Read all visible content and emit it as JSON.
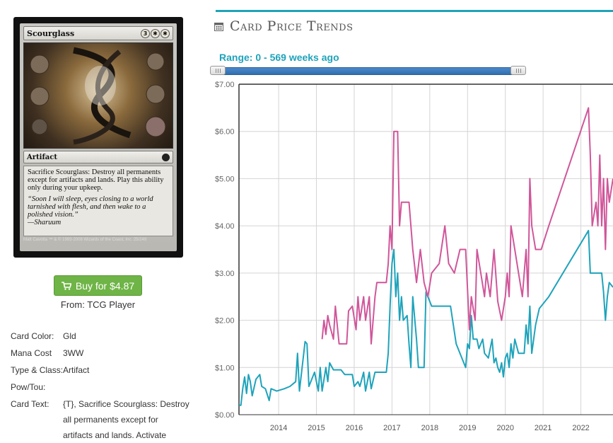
{
  "card": {
    "name": "Scourglass",
    "mana": [
      "3",
      "✱",
      "✱"
    ],
    "type_line": "Artifact",
    "rules_text": "Sacrifice Scourglass: Destroy all permanents except for artifacts and lands. Play this ability only during your upkeep.",
    "flavor_text": "“Soon I will sleep, eyes closing to a world tarnished with flesh, and then wake to a polished vision.”\n—Sharuum",
    "artist": "Matt Cavotta",
    "footer": "™ & © 1993-2008 Wizards of the Coast, Inc. 25/249"
  },
  "buy": {
    "label": "Buy for $4.87",
    "from": "From: TCG Player"
  },
  "info": {
    "color_label": "Card Color:",
    "color_value": "Gld",
    "mana_label": "Mana Cost",
    "mana_value": "3WW",
    "type_label": "Type & Class:",
    "type_value": "Artifact",
    "pt_label": "Pow/Tou:",
    "pt_value": "",
    "text_label": "Card Text:",
    "text_value": "{T}, Sacrifice Scourglass: Destroy all permanents except for artifacts and lands. Activate"
  },
  "section": {
    "title": "Card Price Trends"
  },
  "range": {
    "label": "Range: 0 - 569 weeks ago"
  },
  "colors": {
    "accent": "#1ea3bb",
    "pink": "#d0569a",
    "teal": "#1ea3bb",
    "buy": "#6fb447"
  },
  "chart_data": {
    "type": "line",
    "title": "",
    "xlabel": "",
    "ylabel": "",
    "xlim": [
      2013.0,
      2022.9
    ],
    "ylim": [
      0,
      7
    ],
    "y_ticks": [
      "$0.00",
      "$1.00",
      "$2.00",
      "$3.00",
      "$4.00",
      "$5.00",
      "$6.00",
      "$7.00"
    ],
    "x_ticks": [
      "2014",
      "2015",
      "2016",
      "2017",
      "2018",
      "2019",
      "2020",
      "2021",
      "2022"
    ],
    "grid": true,
    "series": [
      {
        "color": "#1ea3bb",
        "points": [
          [
            2013.0,
            0.2
          ],
          [
            2013.05,
            0.2
          ],
          [
            2013.1,
            0.55
          ],
          [
            2013.15,
            0.8
          ],
          [
            2013.2,
            0.45
          ],
          [
            2013.25,
            0.85
          ],
          [
            2013.3,
            0.7
          ],
          [
            2013.35,
            0.4
          ],
          [
            2013.45,
            0.75
          ],
          [
            2013.55,
            0.85
          ],
          [
            2013.6,
            0.6
          ],
          [
            2013.7,
            0.55
          ],
          [
            2013.8,
            0.3
          ],
          [
            2013.85,
            0.55
          ],
          [
            2014.0,
            0.5
          ],
          [
            2014.2,
            0.55
          ],
          [
            2014.35,
            0.6
          ],
          [
            2014.5,
            0.7
          ],
          [
            2014.55,
            1.3
          ],
          [
            2014.6,
            0.5
          ],
          [
            2014.75,
            1.55
          ],
          [
            2014.8,
            1.5
          ],
          [
            2014.85,
            0.6
          ],
          [
            2015.0,
            0.9
          ],
          [
            2015.1,
            0.5
          ],
          [
            2015.15,
            1.0
          ],
          [
            2015.2,
            0.5
          ],
          [
            2015.3,
            1.0
          ],
          [
            2015.35,
            0.7
          ],
          [
            2015.4,
            1.1
          ],
          [
            2015.5,
            0.95
          ],
          [
            2015.7,
            0.95
          ],
          [
            2015.8,
            0.85
          ],
          [
            2016.0,
            0.85
          ],
          [
            2016.05,
            0.6
          ],
          [
            2016.15,
            0.7
          ],
          [
            2016.2,
            0.6
          ],
          [
            2016.3,
            0.9
          ],
          [
            2016.35,
            0.5
          ],
          [
            2016.45,
            0.9
          ],
          [
            2016.5,
            0.55
          ],
          [
            2016.6,
            0.9
          ],
          [
            2016.9,
            0.9
          ],
          [
            2016.95,
            1.3
          ],
          [
            2017.0,
            2.3
          ],
          [
            2017.05,
            3.2
          ],
          [
            2017.1,
            3.5
          ],
          [
            2017.15,
            2.5
          ],
          [
            2017.2,
            3.0
          ],
          [
            2017.25,
            2.0
          ],
          [
            2017.3,
            2.5
          ],
          [
            2017.35,
            2.0
          ],
          [
            2017.45,
            2.1
          ],
          [
            2017.5,
            1.5
          ],
          [
            2017.55,
            1.0
          ],
          [
            2017.6,
            2.5
          ],
          [
            2017.7,
            1.6
          ],
          [
            2017.75,
            1.0
          ],
          [
            2017.9,
            1.0
          ],
          [
            2017.95,
            2.6
          ],
          [
            2018.1,
            2.3
          ],
          [
            2018.6,
            2.3
          ],
          [
            2018.75,
            1.5
          ],
          [
            2019.0,
            1.0
          ],
          [
            2019.05,
            1.5
          ],
          [
            2019.1,
            1.4
          ],
          [
            2019.15,
            2.1
          ],
          [
            2019.2,
            1.6
          ],
          [
            2019.3,
            1.6
          ],
          [
            2019.35,
            1.4
          ],
          [
            2019.45,
            1.6
          ],
          [
            2019.5,
            1.3
          ],
          [
            2019.6,
            1.2
          ],
          [
            2019.7,
            1.6
          ],
          [
            2019.75,
            1.1
          ],
          [
            2019.8,
            1.2
          ],
          [
            2019.85,
            1.0
          ],
          [
            2019.9,
            0.9
          ],
          [
            2019.95,
            1.1
          ],
          [
            2020.0,
            0.8
          ],
          [
            2020.05,
            1.2
          ],
          [
            2020.1,
            1.3
          ],
          [
            2020.15,
            1.0
          ],
          [
            2020.2,
            1.5
          ],
          [
            2020.25,
            1.2
          ],
          [
            2020.3,
            1.6
          ],
          [
            2020.4,
            1.3
          ],
          [
            2020.55,
            1.3
          ],
          [
            2020.6,
            1.9
          ],
          [
            2020.65,
            1.5
          ],
          [
            2020.7,
            2.3
          ],
          [
            2020.75,
            1.3
          ],
          [
            2020.85,
            1.9
          ],
          [
            2020.95,
            2.25
          ],
          [
            2021.0,
            2.3
          ],
          [
            2021.2,
            2.5
          ],
          [
            2022.25,
            3.9
          ],
          [
            2022.3,
            3.0
          ],
          [
            2022.4,
            3.0
          ],
          [
            2022.6,
            3.0
          ],
          [
            2022.65,
            2.6
          ],
          [
            2022.7,
            2.0
          ],
          [
            2022.75,
            2.5
          ],
          [
            2022.8,
            2.8
          ],
          [
            2022.9,
            2.7
          ]
        ]
      },
      {
        "color": "#d0569a",
        "points": [
          [
            2015.2,
            1.6
          ],
          [
            2015.25,
            2.0
          ],
          [
            2015.3,
            1.7
          ],
          [
            2015.35,
            2.1
          ],
          [
            2015.4,
            1.9
          ],
          [
            2015.5,
            1.6
          ],
          [
            2015.55,
            2.3
          ],
          [
            2015.65,
            1.5
          ],
          [
            2015.85,
            1.5
          ],
          [
            2015.9,
            2.2
          ],
          [
            2016.0,
            2.3
          ],
          [
            2016.1,
            1.8
          ],
          [
            2016.15,
            2.5
          ],
          [
            2016.2,
            2.0
          ],
          [
            2016.3,
            2.5
          ],
          [
            2016.35,
            2.0
          ],
          [
            2016.45,
            2.5
          ],
          [
            2016.5,
            1.5
          ],
          [
            2016.6,
            2.5
          ],
          [
            2016.65,
            2.8
          ],
          [
            2016.9,
            2.8
          ],
          [
            2016.95,
            3.2
          ],
          [
            2017.0,
            4.0
          ],
          [
            2017.05,
            3.5
          ],
          [
            2017.1,
            6.0
          ],
          [
            2017.2,
            6.0
          ],
          [
            2017.25,
            4.0
          ],
          [
            2017.3,
            4.5
          ],
          [
            2017.5,
            4.5
          ],
          [
            2017.6,
            3.5
          ],
          [
            2017.7,
            2.8
          ],
          [
            2017.8,
            3.5
          ],
          [
            2017.9,
            2.8
          ],
          [
            2018.0,
            2.5
          ],
          [
            2018.1,
            3.0
          ],
          [
            2018.3,
            3.2
          ],
          [
            2018.45,
            4.0
          ],
          [
            2018.55,
            3.2
          ],
          [
            2018.7,
            3.0
          ],
          [
            2018.85,
            3.5
          ],
          [
            2019.0,
            3.5
          ],
          [
            2019.1,
            1.8
          ],
          [
            2019.15,
            2.5
          ],
          [
            2019.25,
            2.0
          ],
          [
            2019.3,
            3.5
          ],
          [
            2019.4,
            3.0
          ],
          [
            2019.5,
            2.5
          ],
          [
            2019.55,
            3.0
          ],
          [
            2019.65,
            2.5
          ],
          [
            2019.75,
            3.5
          ],
          [
            2019.85,
            2.4
          ],
          [
            2019.95,
            2.0
          ],
          [
            2020.05,
            2.5
          ],
          [
            2020.1,
            3.0
          ],
          [
            2020.15,
            2.5
          ],
          [
            2020.2,
            4.0
          ],
          [
            2020.3,
            3.5
          ],
          [
            2020.4,
            3.0
          ],
          [
            2020.5,
            2.5
          ],
          [
            2020.55,
            3.0
          ],
          [
            2020.6,
            3.5
          ],
          [
            2020.65,
            2.5
          ],
          [
            2020.7,
            5.0
          ],
          [
            2020.75,
            4.0
          ],
          [
            2020.85,
            3.5
          ],
          [
            2020.95,
            3.5
          ],
          [
            2021.0,
            3.5
          ],
          [
            2021.2,
            4.0
          ],
          [
            2022.25,
            6.5
          ],
          [
            2022.3,
            5.5
          ],
          [
            2022.35,
            4.0
          ],
          [
            2022.45,
            4.5
          ],
          [
            2022.5,
            4.0
          ],
          [
            2022.55,
            5.5
          ],
          [
            2022.6,
            4.0
          ],
          [
            2022.65,
            5.0
          ],
          [
            2022.7,
            3.5
          ],
          [
            2022.75,
            5.0
          ],
          [
            2022.8,
            4.5
          ],
          [
            2022.9,
            5.0
          ]
        ]
      }
    ]
  }
}
